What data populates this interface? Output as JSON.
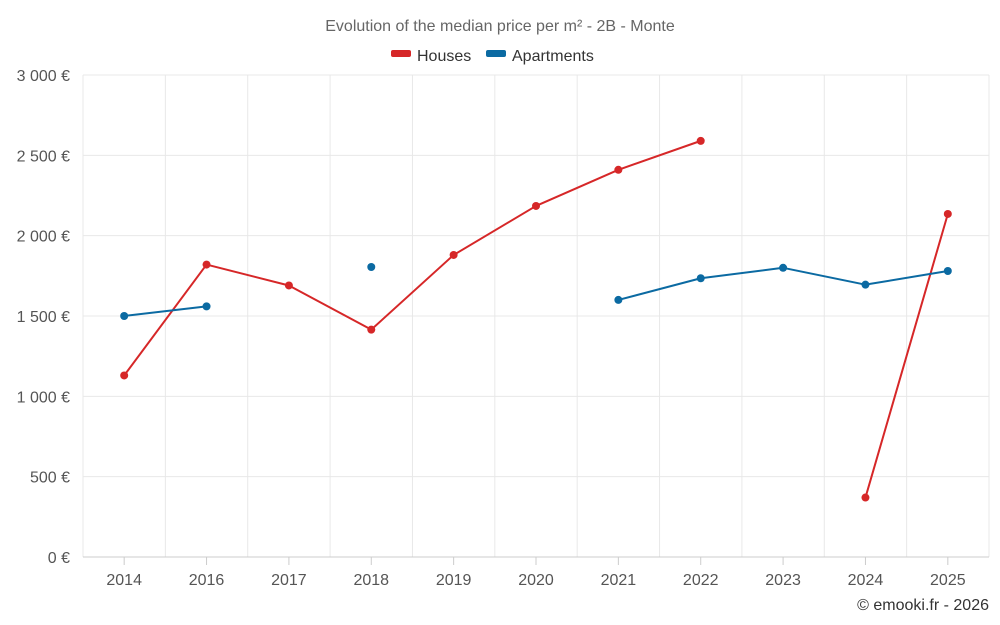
{
  "chart_data": {
    "type": "line",
    "title": "Evolution of the median price per m² - 2B - Monte",
    "categories": [
      "2014",
      "2016",
      "2017",
      "2018",
      "2019",
      "2020",
      "2021",
      "2022",
      "2023",
      "2024",
      "2025"
    ],
    "series": [
      {
        "name": "Houses",
        "color": "#d62728",
        "values": [
          1130,
          1820,
          1690,
          1415,
          1880,
          2185,
          2410,
          2590,
          null,
          370,
          2135
        ]
      },
      {
        "name": "Apartments",
        "color": "#0b6aa2",
        "values": [
          1500,
          1560,
          null,
          1805,
          null,
          null,
          1600,
          1735,
          1800,
          1695,
          1780
        ]
      }
    ],
    "ylim": [
      0,
      3000
    ],
    "yticks": [
      0,
      500,
      1000,
      1500,
      2000,
      2500,
      3000
    ],
    "ytick_labels": [
      "0 €",
      "500 €",
      "1 000 €",
      "1 500 €",
      "2 000 €",
      "2 500 €",
      "3 000 €"
    ],
    "xlabel": "",
    "ylabel": "",
    "grid": true,
    "legend_position": "top-center"
  },
  "credit": "© emooki.fr - 2026"
}
